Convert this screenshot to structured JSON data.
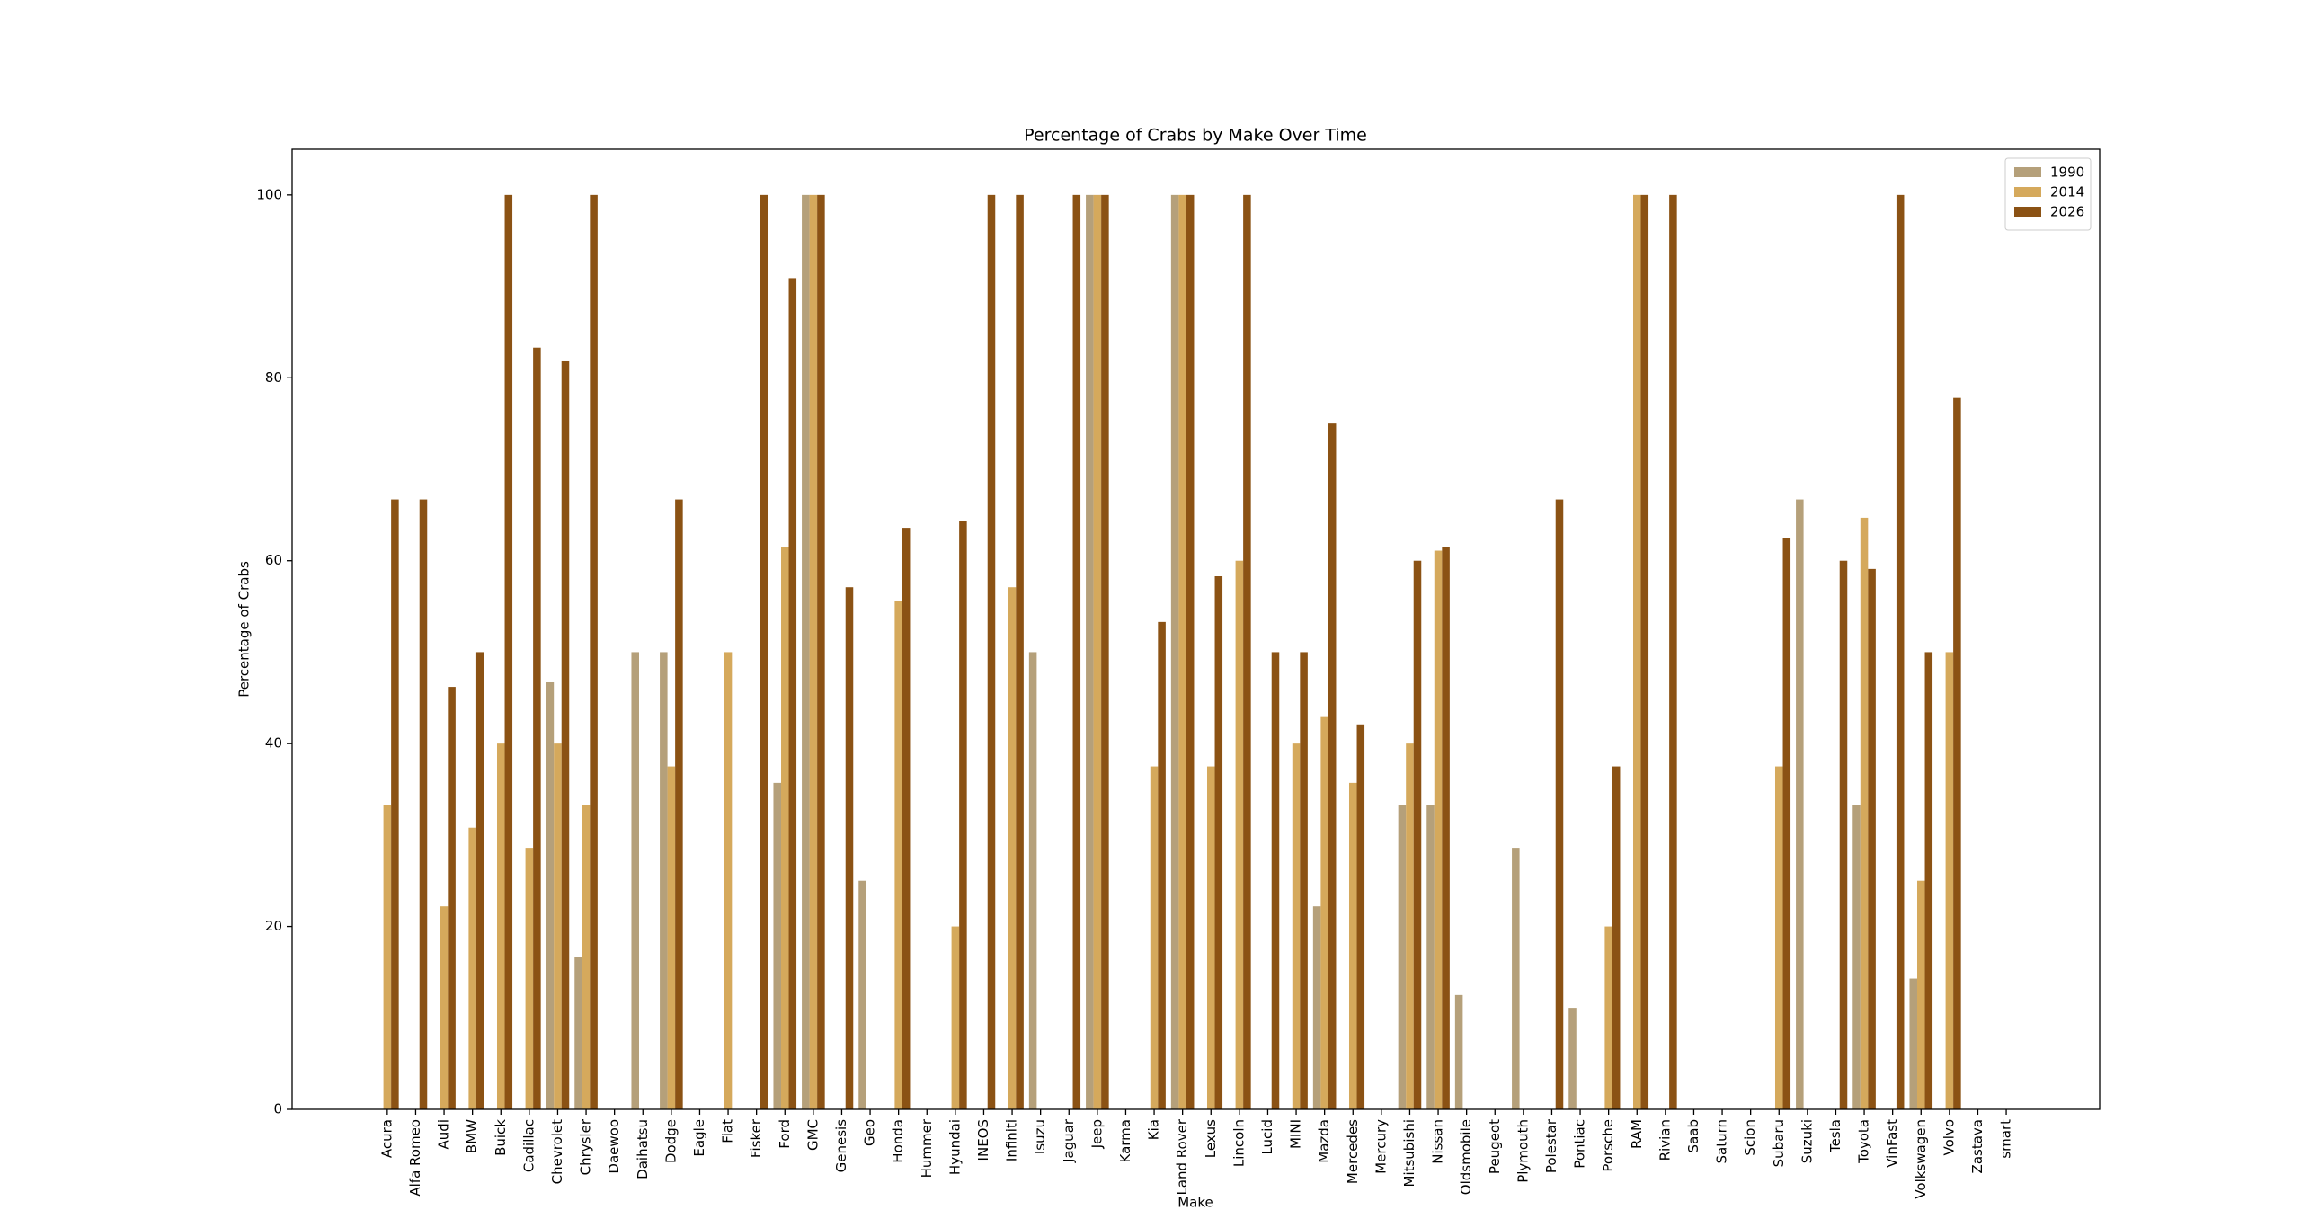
{
  "chart_data": {
    "type": "bar",
    "title": "Percentage of Crabs by Make Over Time",
    "x_label": "Make",
    "y_label": "Percentage of Crabs",
    "categories": [
      "Acura",
      "Alfa Romeo",
      "Audi",
      "BMW",
      "Buick",
      "Cadillac",
      "Chevrolet",
      "Chrysler",
      "Daewoo",
      "Daihatsu",
      "Dodge",
      "Eagle",
      "Fiat",
      "Fisker",
      "Ford",
      "GMC",
      "Genesis",
      "Geo",
      "Honda",
      "Hummer",
      "Hyundai",
      "INEOS",
      "Infiniti",
      "Isuzu",
      "Jaguar",
      "Jeep",
      "Karma",
      "Kia",
      "Land Rover",
      "Lexus",
      "Lincoln",
      "Lucid",
      "MINI",
      "Mazda",
      "Mercedes",
      "Mercury",
      "Mitsubishi",
      "Nissan",
      "Oldsmobile",
      "Peugeot",
      "Plymouth",
      "Polestar",
      "Pontiac",
      "Porsche",
      "RAM",
      "Rivian",
      "Saab",
      "Saturn",
      "Scion",
      "Subaru",
      "Suzuki",
      "Tesla",
      "Toyota",
      "VinFast",
      "Volkswagen",
      "Volvo",
      "Zastava",
      "smart"
    ],
    "series": [
      {
        "name": "1990",
        "color": "#b5a07a",
        "values": [
          null,
          null,
          null,
          null,
          null,
          null,
          46.7,
          16.7,
          null,
          50,
          50,
          null,
          null,
          null,
          35.7,
          100,
          null,
          25,
          null,
          null,
          null,
          null,
          null,
          50,
          null,
          100,
          null,
          null,
          100,
          null,
          null,
          null,
          null,
          22.2,
          null,
          null,
          33.3,
          33.3,
          12.5,
          null,
          28.6,
          null,
          11.1,
          null,
          null,
          null,
          null,
          null,
          null,
          null,
          66.7,
          null,
          33.3,
          null,
          14.3,
          null,
          null,
          null
        ]
      },
      {
        "name": "2014",
        "color": "#d5a95c",
        "values": [
          33.3,
          null,
          22.2,
          30.8,
          40,
          28.6,
          40,
          33.3,
          null,
          null,
          37.5,
          null,
          50,
          null,
          61.5,
          100,
          null,
          null,
          55.6,
          null,
          20,
          null,
          57.1,
          null,
          null,
          100,
          null,
          37.5,
          100,
          37.5,
          60,
          null,
          40,
          42.9,
          35.7,
          null,
          40,
          61.1,
          null,
          null,
          null,
          null,
          null,
          20,
          100,
          null,
          null,
          null,
          null,
          37.5,
          null,
          null,
          64.7,
          null,
          25,
          50,
          null,
          null
        ]
      },
      {
        "name": "2026",
        "color": "#8b5214",
        "values": [
          66.7,
          66.7,
          46.2,
          50,
          100,
          83.3,
          81.8,
          100,
          null,
          null,
          66.7,
          null,
          null,
          100,
          90.9,
          100,
          57.1,
          null,
          63.6,
          null,
          64.3,
          100,
          100,
          null,
          100,
          100,
          null,
          53.3,
          100,
          58.3,
          100,
          50,
          50,
          75,
          42.1,
          null,
          60,
          61.5,
          null,
          null,
          null,
          66.7,
          null,
          37.5,
          100,
          100,
          null,
          null,
          null,
          62.5,
          null,
          60,
          59.1,
          100,
          50,
          77.8,
          null,
          null
        ]
      }
    ],
    "ylim": [
      0,
      105
    ],
    "yticks": [
      0,
      20,
      40,
      60,
      80,
      100
    ],
    "grid": false,
    "legend": "upper right"
  }
}
